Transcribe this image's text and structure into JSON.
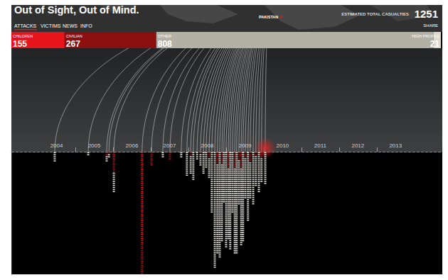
{
  "header": {
    "title": "Out of Sight, Out of Mind.",
    "nav": [
      "ATTACKS",
      "VICTIMS",
      "NEWS",
      "INFO"
    ],
    "country": "PAKISTAN",
    "total_label": "ESTIMATED TOTAL CASUALTIES",
    "total": 1251,
    "share": "SHARE"
  },
  "chart_data": [
    {
      "type": "bar",
      "orientation": "horizontal",
      "stacked": true,
      "data_labels": true,
      "tick_labels": false,
      "categories": [
        null
      ],
      "series": [
        {
          "name": "CHILDREN",
          "color": "#e8141c",
          "values": [
            155
          ]
        },
        {
          "name": "CIVILIAN",
          "color": "#8a1010",
          "values": [
            267
          ]
        },
        {
          "name": "OTHER",
          "color": "#b3b0a4",
          "values": [
            808
          ]
        },
        {
          "name": "HIGH PROFILE",
          "color": "#ded9cc",
          "values": [
            21
          ]
        }
      ],
      "xlim": [
        0,
        1251
      ]
    },
    {
      "type": "bar",
      "stacked": true,
      "marker": "dash",
      "grid": false,
      "tick_labels": "x",
      "x": [
        2004.45,
        2005.34,
        2005.83,
        2005.89,
        2006.02,
        2006.77,
        2007.02,
        2007.32,
        2007.51,
        2007.81,
        2007.96,
        2008.06,
        2008.13,
        2008.23,
        2008.32,
        2008.4,
        2008.47,
        2008.55,
        2008.62,
        2008.7,
        2008.77,
        2008.83,
        2008.89,
        2008.94,
        2009.0,
        2009.06,
        2009.11,
        2009.17,
        2009.23,
        2009.28,
        2009.34,
        2009.4,
        2009.45,
        2009.51,
        2009.58,
        2009.64,
        2009.72,
        2009.79,
        2009.87,
        2009.94,
        2010.04
      ],
      "series": [
        {
          "name": "CHILDREN",
          "color": "#e8141c",
          "values": [
            0,
            0,
            0,
            0,
            4,
            45,
            0,
            0,
            0,
            0,
            0,
            0,
            0,
            0,
            0,
            0,
            0,
            0,
            0,
            0,
            2,
            0,
            0,
            0,
            0,
            3,
            0,
            0,
            0,
            0,
            0,
            2,
            0,
            0,
            0,
            0,
            0,
            0,
            0,
            0,
            0
          ]
        },
        {
          "name": "CIVILIAN",
          "color": "#a81418",
          "values": [
            0,
            0,
            2,
            1,
            6,
            15,
            7,
            0,
            4,
            0,
            0,
            2,
            0,
            0,
            1,
            0,
            0,
            3,
            0,
            0,
            4,
            0,
            6,
            0,
            0,
            5,
            0,
            0,
            8,
            0,
            4,
            6,
            0,
            3,
            0,
            5,
            0,
            2,
            0,
            3,
            0
          ]
        },
        {
          "name": "OTHER",
          "color": "#ecebe4",
          "values": [
            5,
            2,
            3,
            2,
            10,
            0,
            0,
            3,
            0,
            3,
            12,
            9,
            14,
            4,
            6,
            11,
            8,
            10,
            30,
            57,
            44,
            52,
            38,
            25,
            47,
            35,
            48,
            30,
            42,
            50,
            22,
            38,
            44,
            20,
            34,
            18,
            26,
            15,
            20,
            12,
            16
          ]
        }
      ],
      "xlim": [
        2003.3,
        2014.74
      ],
      "xticks": [
        {
          "value": 2004.5,
          "label": "2004"
        },
        {
          "value": 2005.5,
          "label": "2005"
        },
        {
          "value": 2006.5,
          "label": "2006"
        },
        {
          "value": 2007.5,
          "label": "2007"
        },
        {
          "value": 2008.5,
          "label": "2008"
        },
        {
          "value": 2009.5,
          "label": "2009"
        },
        {
          "value": 2010.5,
          "label": "2010"
        },
        {
          "value": 2011.5,
          "label": "2011"
        },
        {
          "value": 2012.5,
          "label": "2012"
        },
        {
          "value": 2013.5,
          "label": "2013"
        }
      ],
      "ylim": [
        0,
        60
      ]
    }
  ]
}
